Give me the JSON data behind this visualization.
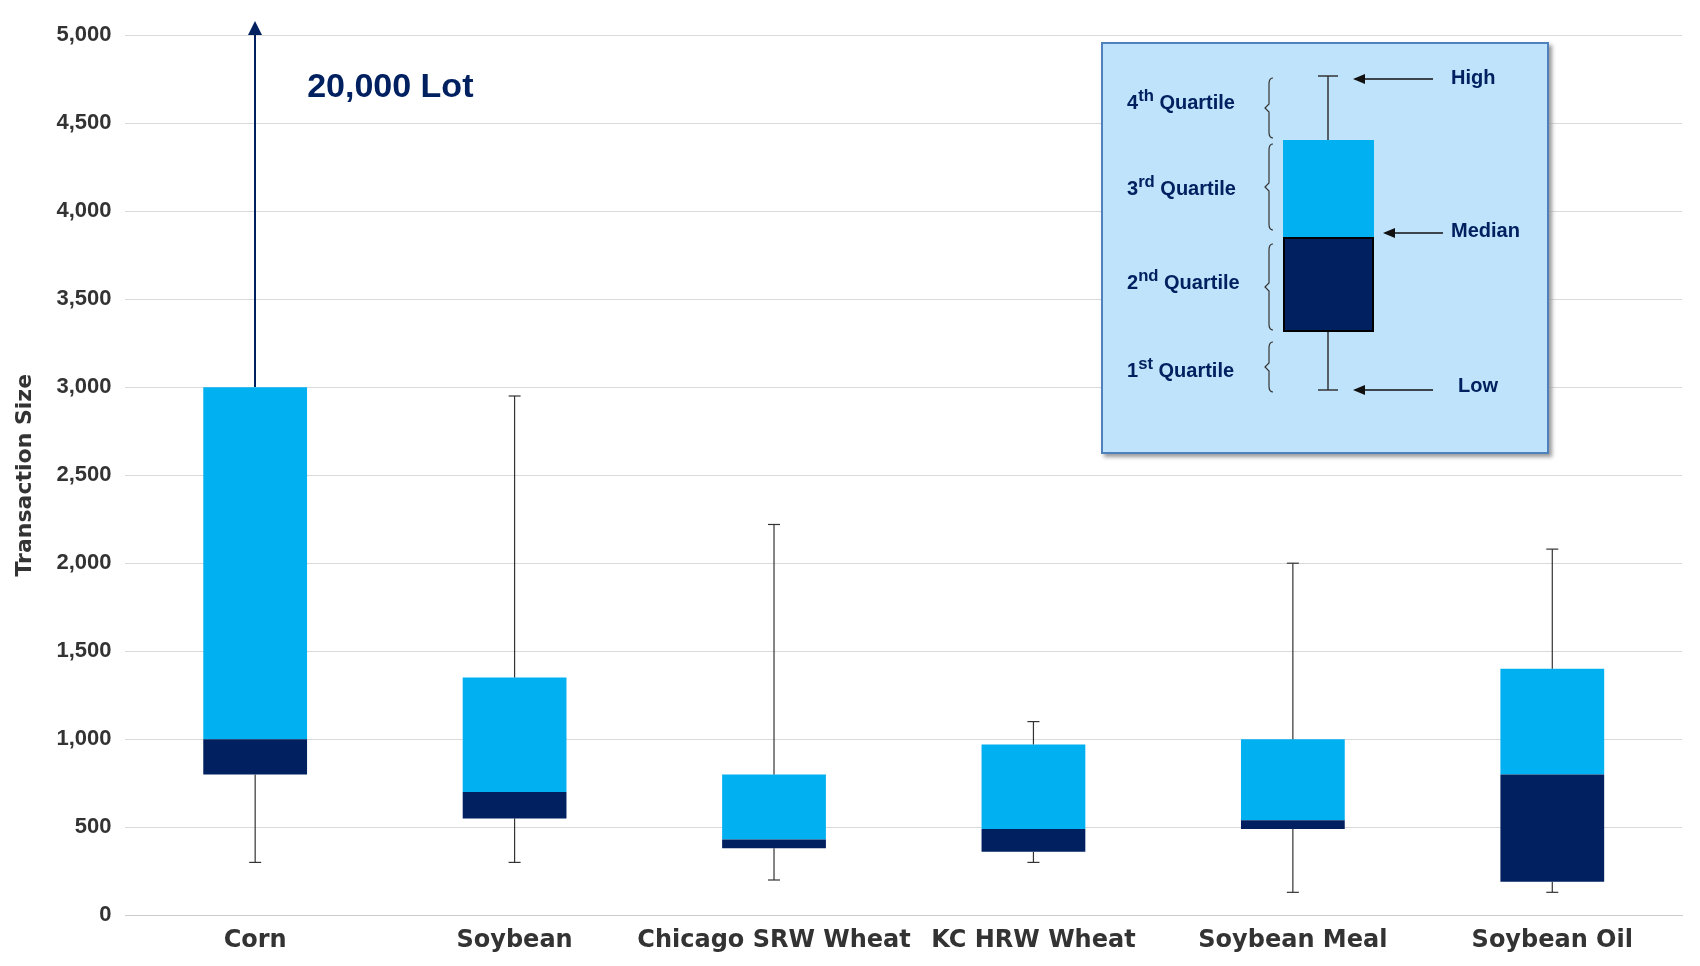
{
  "chart_data": {
    "type": "box",
    "ylabel": "Transaction Size",
    "categories": [
      "Corn",
      "Soybean",
      "Chicago SRW Wheat",
      "KC HRW Wheat",
      "Soybean Meal",
      "Soybean Oil"
    ],
    "color": "#00b0f0",
    "colors": [
      "#002060",
      "#002060",
      "#002060",
      "#002060",
      "#002060",
      "#002060"
    ],
    "boxes": [
      {
        "low": 300,
        "q1": 800,
        "median": 1000,
        "q3": 3000,
        "high": null
      },
      {
        "low": 300,
        "q1": 550,
        "median": 700,
        "q3": 1350,
        "high": 2950
      },
      {
        "low": 200,
        "q1": 380,
        "median": 430,
        "q3": 800,
        "high": 2220
      },
      {
        "low": 300,
        "q1": 360,
        "median": 490,
        "q3": 970,
        "high": 1100
      },
      {
        "low": 130,
        "q1": 490,
        "median": 540,
        "q3": 1000,
        "high": 2000
      },
      {
        "low": 130,
        "q1": 190,
        "median": 800,
        "q3": 1400,
        "high": 2080
      }
    ],
    "ylim": [
      0,
      5000
    ],
    "yticks": [
      0,
      500,
      {
        "value": 1000,
        "label": "1,000"
      },
      {
        "value": 1500,
        "label": "1,500"
      },
      {
        "value": 2000,
        "label": "2,000"
      },
      {
        "value": 2500,
        "label": "2,500"
      },
      {
        "value": 3000,
        "label": "3,000"
      },
      {
        "value": 3500,
        "label": "3,500"
      },
      {
        "value": 4000,
        "label": "4,000"
      },
      {
        "value": 4500,
        "label": "4,500"
      },
      {
        "value": 5000,
        "label": "5,000"
      }
    ],
    "grid": "y",
    "annotations": [
      "20,000 Lot",
      "4$^{th}$  Quartile",
      "3$^{rd}$ Quartile",
      "2$^{nd}$ Quartile",
      "1$^{st}$ Quartile",
      "High",
      "Median",
      "Low"
    ]
  }
}
